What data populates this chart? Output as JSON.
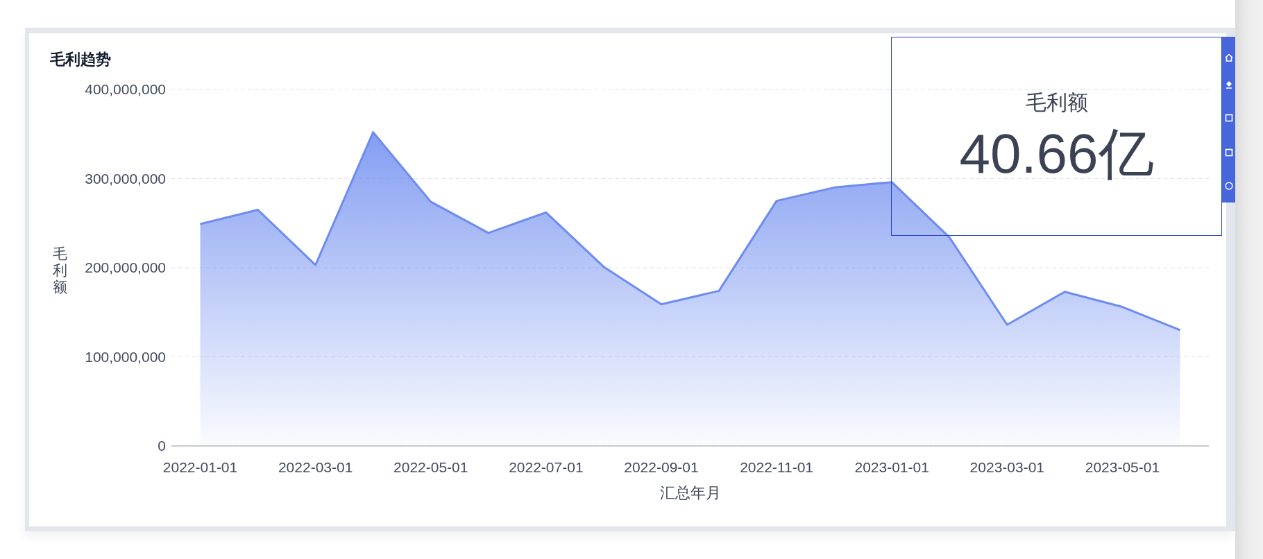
{
  "chart_data": [
    {
      "type": "area",
      "title": "毛利趋势",
      "xlabel": "汇总年月",
      "ylabel": "毛利额",
      "categories": [
        "2022-01-01",
        null,
        "2022-03-01",
        null,
        "2022-05-01",
        null,
        "2022-07-01",
        null,
        "2022-09-01",
        null,
        "2022-11-01",
        null,
        "2023-01-01",
        null,
        "2023-03-01",
        null,
        "2023-05-01",
        null
      ],
      "series": [
        {
          "color": "#6e8cf0",
          "values": [
            249000000,
            265000000,
            203000000,
            352000000,
            274000000,
            239000000,
            262000000,
            201000000,
            159000000,
            174000000,
            275000000,
            290000000,
            296000000,
            234000000,
            136000000,
            173000000,
            156000000,
            130000000
          ]
        }
      ],
      "ylim": [
        0,
        400000000
      ],
      "yticks": [
        0,
        {
          "value": 100000000,
          "label": "100,000,000"
        },
        {
          "value": 200000000,
          "label": "200,000,000"
        },
        {
          "value": 300000000,
          "label": "300,000,000"
        },
        {
          "value": 400000000,
          "label": "400,000,000"
        }
      ],
      "grid": "y"
    },
    {
      "type": "other",
      "title": "毛利额",
      "annotations": [
        "40.66亿"
      ]
    }
  ]
}
